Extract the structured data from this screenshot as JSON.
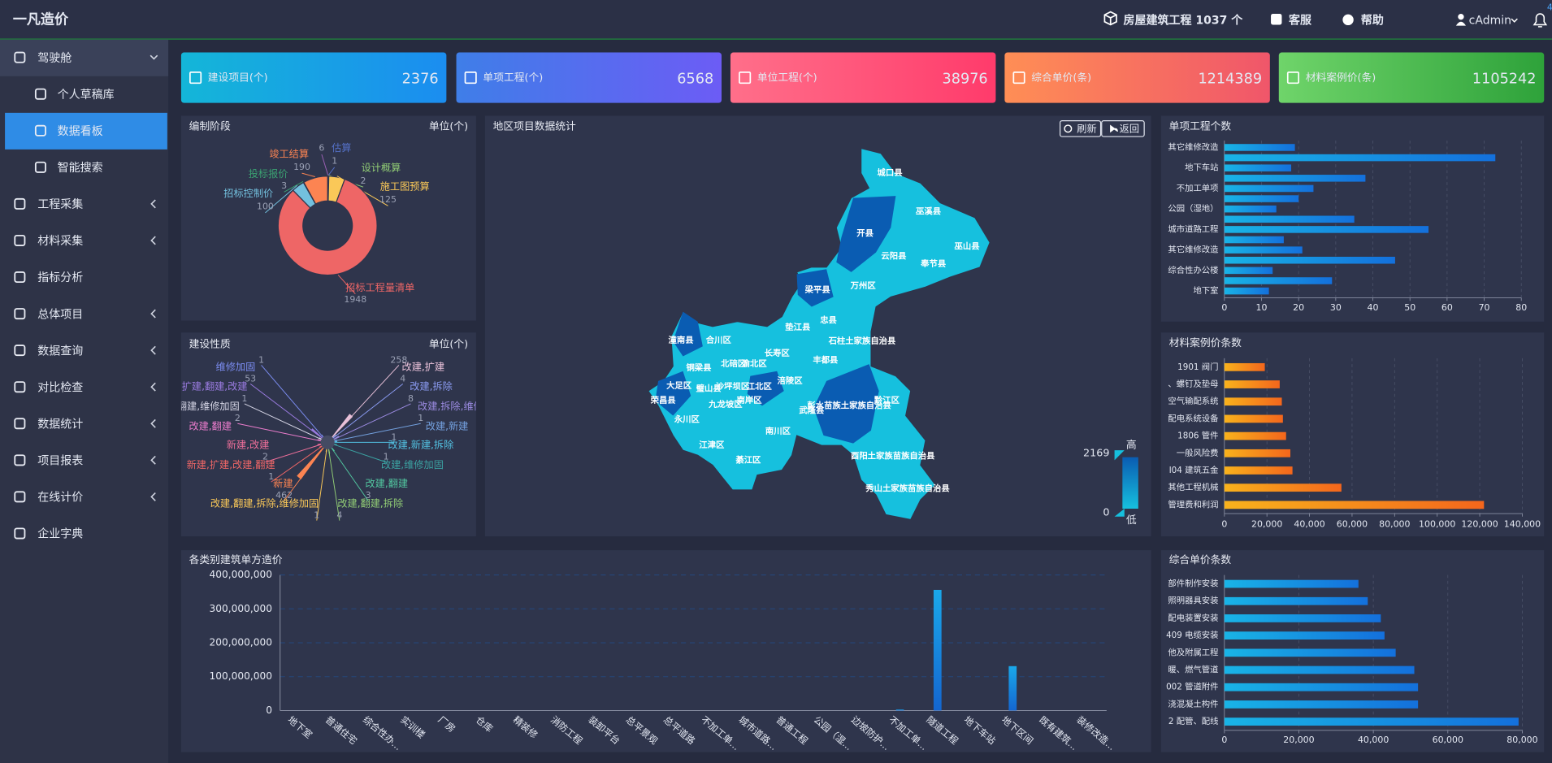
{
  "header": {
    "title": "一凡造价",
    "project_count": "房屋建筑工程 1037 个",
    "service": "客服",
    "help": "帮助",
    "user": "cAdmin",
    "notification_count": 4
  },
  "sidebar": {
    "items": [
      {
        "label": "驾驶舱",
        "submenu": true,
        "open": true
      },
      {
        "label": "个人草稿库",
        "child": true
      },
      {
        "label": "数据看板",
        "child": true,
        "active": true
      },
      {
        "label": "智能搜索",
        "child": true
      },
      {
        "label": "工程采集",
        "submenu": true
      },
      {
        "label": "材料采集",
        "submenu": true
      },
      {
        "label": "指标分析"
      },
      {
        "label": "总体项目",
        "submenu": true
      },
      {
        "label": "数据查询",
        "submenu": true
      },
      {
        "label": "对比检查",
        "submenu": true
      },
      {
        "label": "数据统计",
        "submenu": true
      },
      {
        "label": "项目报表",
        "submenu": true
      },
      {
        "label": "在线计价",
        "submenu": true
      },
      {
        "label": "企业字典"
      }
    ]
  },
  "cards": [
    {
      "label": "建设项目(个)",
      "value": 2376,
      "colors": [
        "#14b6d8",
        "#1b8df0"
      ]
    },
    {
      "label": "单项工程(个)",
      "value": 6568,
      "colors": [
        "#3f7ee8",
        "#6c5cf5"
      ]
    },
    {
      "label": "单位工程(个)",
      "value": 38976,
      "colors": [
        "#ff6f8a",
        "#ff3b6b"
      ]
    },
    {
      "label": "综合单价(条)",
      "value": 1214389,
      "colors": [
        "#ff8e55",
        "#f0566a"
      ]
    },
    {
      "label": "材料案例价(条)",
      "value": 1105242,
      "colors": [
        "#6fd46a",
        "#2ea23a"
      ]
    }
  ],
  "chart_data": [
    {
      "type": "pie",
      "title": "编制阶段",
      "unit": "单位(个)",
      "categories": [
        null,
        "估算",
        "设计概算",
        "施工图预算",
        "招标工程量清单",
        "招标控制价",
        "投标报价",
        "竣工结算"
      ],
      "values": [
        6,
        1,
        2,
        125,
        1948,
        100,
        3,
        190
      ],
      "colors": [
        "#9a60b4",
        "#5470c6",
        "#91cc75",
        "#fac858",
        "#ee6666",
        "#73c0de",
        "#3ba272",
        "#fc8452"
      ]
    },
    {
      "type": "rose",
      "title": "建设性质",
      "unit": "单位(个)",
      "categories": [
        "维修加固",
        "扩建,翻建,改建",
        "翻建,维修加固",
        "改建,翻建",
        "新建,改建",
        "新建,扩建,改建,翻建",
        "新建",
        "改建,翻建,拆除,维修加固",
        "改建,翻建,拆除",
        "改建,翻建",
        "改建,维修加固",
        "改建,新建,拆除",
        "改建,新建",
        "改建,拆除,维修加固",
        "改建,拆除",
        "改建,扩建"
      ],
      "values": [
        1,
        53,
        1,
        2,
        2,
        1,
        462,
        1,
        4,
        3,
        1,
        1,
        1,
        8,
        4,
        258
      ],
      "colors": [
        "#7b8cf0",
        "#9a7be0",
        "#d6d6e6",
        "#ea7ccc",
        "#ee6f9a",
        "#ee6666",
        "#fc8452",
        "#fac858",
        "#91cc75",
        "#52c7a0",
        "#3ba2a2",
        "#52c0e0",
        "#73a0de",
        "#9a8ae0",
        "#8a9af0",
        "#e8c0d8"
      ]
    },
    {
      "type": "map",
      "title": "地区项目数据统计",
      "buttons": [
        "刷新",
        "返回"
      ],
      "regions": [
        "城口县",
        "巫溪县",
        "开县",
        "巫山县",
        "云阳县",
        "奉节县",
        "万州区",
        "梁平县",
        "忠县",
        "垫江县",
        "石柱土家族自治县",
        "潼南县",
        "合川区",
        "铜梁县",
        "北碚区",
        "渝北区",
        "长寿区",
        "丰都县",
        "大足区",
        "璧山县",
        "沙坪坝区",
        "江北区",
        "荣昌县",
        "九龙坡区",
        "南岸区",
        "涪陵区",
        "武隆县",
        "彭水苗族土家族自治县",
        "黔江区",
        "永川区",
        "江津区",
        "南川区",
        "綦江区",
        "酉阳土家族苗族自治县",
        "秀山土家族苗族自治县"
      ],
      "visual_map": {
        "max": 2169,
        "min": 0,
        "high": "高",
        "low": "低",
        "colors": [
          "#16c0de",
          "#0a5cb2"
        ]
      }
    },
    {
      "type": "hbar",
      "title": "单项工程个数",
      "categories": [
        "其它维修改造",
        null,
        "地下车站",
        null,
        "不加工单项",
        null,
        "公园（湿地）",
        null,
        "城市道路工程",
        null,
        "其它维修改造",
        null,
        "综合性办公楼",
        null,
        "地下室"
      ],
      "values": [
        19,
        73,
        18,
        38,
        24,
        20,
        14,
        35,
        55,
        16,
        21,
        46,
        13,
        29,
        12
      ],
      "xlim": [
        0,
        80
      ],
      "xticks": [
        0,
        10,
        20,
        30,
        40,
        50,
        60,
        70,
        80
      ],
      "colors": [
        "#19b4e6",
        "#1470dc"
      ]
    },
    {
      "type": "hbar",
      "title": "材料案例价条数",
      "categories": [
        "1901 阀门",
        "、螺钉及垫母",
        "空气输配系统",
        "配电系统设备",
        "1806 管件",
        "一般风险费",
        "l04 建筑五金",
        "其他工程机械",
        "管理费和利润"
      ],
      "values": [
        19000,
        26000,
        27000,
        27500,
        29000,
        31000,
        32000,
        55000,
        122000
      ],
      "xlim": [
        0,
        140000
      ],
      "xticks": [
        0,
        {
          "value": 20000,
          "label": "20,000"
        },
        {
          "value": 40000,
          "label": "40,000"
        },
        {
          "value": 60000,
          "label": "60,000"
        },
        {
          "value": 80000,
          "label": "80,000"
        },
        {
          "value": 100000,
          "label": "100,000"
        },
        {
          "value": 120000,
          "label": "120,000"
        },
        {
          "value": 140000,
          "label": "140,000"
        }
      ],
      "colors": [
        "#f8b21c",
        "#f4661c"
      ]
    },
    {
      "type": "hbar",
      "title": "综合单价条数",
      "categories": [
        "部件制作安装",
        "照明器具安装",
        "配电装置安装",
        "409 电缆安装",
        "他及附属工程",
        "暖、燃气管道",
        "002 管道附件",
        "浇混凝土构件",
        "2 配管、配线"
      ],
      "values": [
        36000,
        38500,
        42000,
        43000,
        46000,
        51000,
        52000,
        52000,
        79000
      ],
      "xlim": [
        0,
        80000
      ],
      "xticks": [
        0,
        {
          "value": 20000,
          "label": "20,000"
        },
        {
          "value": 40000,
          "label": "40,000"
        },
        {
          "value": 60000,
          "label": "60,000"
        },
        {
          "value": 80000,
          "label": "80,000"
        }
      ],
      "colors": [
        "#19b4e6",
        "#1470dc"
      ]
    },
    {
      "type": "bar",
      "title": "各类别建筑单方造价",
      "categories": [
        "地下室",
        "普通住宅",
        "综合性办...",
        "实训楼",
        "厂房",
        "仓库",
        "精装修",
        "消防工程",
        "装卸平台",
        "总平景观",
        "总平道路",
        "不加工单...",
        "城市道路...",
        "普通工程",
        "公园（湿...",
        "边坡防护...",
        "不加工单...",
        "隧道工程",
        "地下车站",
        "地下区间",
        "既有建筑...",
        "装修改造..."
      ],
      "values": [
        0,
        0,
        0,
        0,
        0,
        0,
        0,
        0,
        0,
        0,
        0,
        0,
        0,
        0,
        0,
        0,
        3000000,
        356000000,
        0,
        131000000,
        0,
        0
      ],
      "ylim": [
        0,
        400000000
      ],
      "yticks": [
        0,
        {
          "value": 100000000,
          "label": "100,000,000"
        },
        {
          "value": 200000000,
          "label": "200,000,000"
        },
        {
          "value": 300000000,
          "label": "300,000,000"
        },
        {
          "value": 400000000,
          "label": "400,000,000"
        }
      ],
      "grid": true,
      "colors": [
        "#1aa8ea",
        "#1466d0"
      ]
    }
  ]
}
